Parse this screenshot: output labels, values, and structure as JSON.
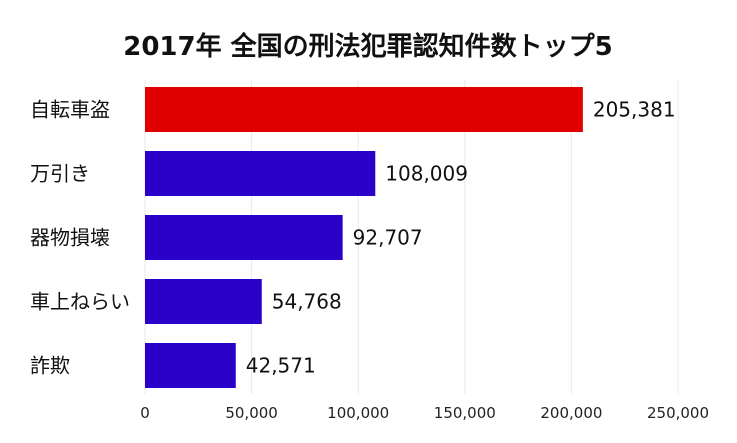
{
  "chart_data": {
    "type": "bar",
    "orientation": "horizontal",
    "title": "2017年 全国の刑法犯罪認知件数トップ5",
    "xlabel": "",
    "ylabel": "",
    "categories": [
      "自転車盗",
      "万引き",
      "器物損壊",
      "車上ねらい",
      "詐欺"
    ],
    "values": [
      205381,
      108009,
      92707,
      54768,
      42571
    ],
    "bar_colors": [
      "#e00000",
      "#2b00c8",
      "#2b00c8",
      "#2b00c8",
      "#2b00c8"
    ],
    "xlim": [
      0,
      250000
    ],
    "xticks": [
      0,
      50000,
      100000,
      150000,
      200000,
      250000
    ],
    "grid": "vertical",
    "legend": "none"
  }
}
